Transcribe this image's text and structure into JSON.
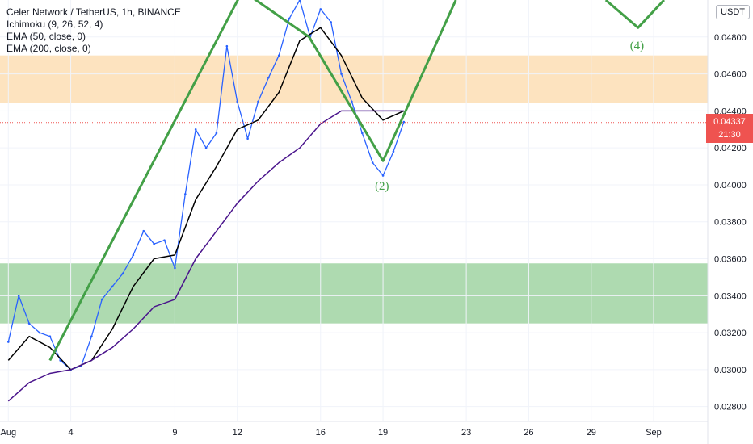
{
  "header": {
    "title": "Celer Network / TetherUS, 1h, BINANCE",
    "indicators": [
      "Ichimoku (9, 26, 52, 4)",
      "EMA (50, close, 0)",
      "EMA (200, close, 0)"
    ],
    "currency_button": "USDT"
  },
  "last_price": {
    "value": "0.04337",
    "countdown": "21:30",
    "color": "#ef5350"
  },
  "wave_labels": [
    {
      "text": "(2)",
      "x": 19.0,
      "y": 0.0399
    },
    {
      "text": "(4)",
      "x": 31.25,
      "y": 0.0475
    }
  ],
  "chart_data": {
    "type": "line",
    "x_axis": {
      "ticks": [
        "Aug",
        "4",
        "9",
        "12",
        "16",
        "19",
        "23",
        "26",
        "29",
        "Sep"
      ],
      "tick_values": [
        1,
        4,
        9,
        12,
        16,
        19,
        23,
        26,
        29,
        32
      ],
      "range": [
        0.6,
        34.6
      ]
    },
    "y_axis": {
      "ticks": [
        "0.02800",
        "0.03000",
        "0.03200",
        "0.03400",
        "0.03600",
        "0.03800",
        "0.04000",
        "0.04200",
        "0.04400",
        "0.04600",
        "0.04800"
      ],
      "range": [
        0.0272,
        0.05
      ],
      "side": "right"
    },
    "zones": [
      {
        "name": "resistance",
        "y_from": 0.04445,
        "y_to": 0.047,
        "color": "#fde0b8"
      },
      {
        "name": "support",
        "y_from": 0.0325,
        "y_to": 0.03575,
        "color": "#a5d6a7"
      }
    ],
    "series": [
      {
        "name": "Price",
        "color": "#2962ff",
        "x": [
          1.0,
          1.5,
          2.0,
          2.5,
          3.0,
          3.5,
          4.0,
          4.5,
          5.0,
          5.5,
          6.0,
          6.5,
          7.0,
          7.5,
          8.0,
          8.5,
          9.0,
          9.5,
          10.0,
          10.5,
          11.0,
          11.5,
          12.0,
          12.5,
          13.0,
          13.5,
          14.0,
          14.5,
          15.0,
          15.5,
          16.0,
          16.5,
          17.0,
          17.5,
          18.0,
          18.5,
          19.0,
          19.5,
          20.0
        ],
        "y": [
          0.0315,
          0.034,
          0.0325,
          0.032,
          0.0318,
          0.0305,
          0.03,
          0.0302,
          0.0318,
          0.0338,
          0.0345,
          0.0352,
          0.0362,
          0.0375,
          0.0368,
          0.037,
          0.0355,
          0.0395,
          0.043,
          0.042,
          0.0428,
          0.0475,
          0.0445,
          0.0425,
          0.0445,
          0.0458,
          0.047,
          0.049,
          0.05,
          0.048,
          0.0495,
          0.0488,
          0.046,
          0.0445,
          0.0428,
          0.0412,
          0.0405,
          0.0418,
          0.0434
        ]
      },
      {
        "name": "EMA 50",
        "color": "#000000",
        "x": [
          1,
          2,
          3,
          4,
          5,
          6,
          7,
          8,
          9,
          10,
          11,
          12,
          13,
          14,
          15,
          16,
          17,
          18,
          19,
          20
        ],
        "y": [
          0.0305,
          0.0318,
          0.0312,
          0.03,
          0.0305,
          0.0322,
          0.0345,
          0.036,
          0.0362,
          0.0392,
          0.041,
          0.043,
          0.0435,
          0.045,
          0.0478,
          0.0485,
          0.047,
          0.0447,
          0.0435,
          0.044
        ]
      },
      {
        "name": "EMA 200",
        "color": "#4a148c",
        "x": [
          1,
          2,
          3,
          4,
          5,
          6,
          7,
          8,
          9,
          10,
          11,
          12,
          13,
          14,
          15,
          16,
          17,
          18,
          19,
          20
        ],
        "y": [
          0.0283,
          0.0293,
          0.0298,
          0.03,
          0.0305,
          0.0312,
          0.0322,
          0.0334,
          0.0338,
          0.036,
          0.0375,
          0.039,
          0.0402,
          0.0412,
          0.042,
          0.0433,
          0.044,
          0.044,
          0.044,
          0.044
        ]
      }
    ],
    "wave_path": {
      "name": "Elliott projection",
      "color": "#43a047",
      "x": [
        3.0,
        12.25,
        15.45,
        19.0,
        22.5
      ],
      "y": [
        0.0305,
        0.0505,
        0.048,
        0.0413,
        0.05
      ]
    },
    "wave_path_2": {
      "x": [
        29.7,
        31.25,
        32.5
      ],
      "y": [
        0.05,
        0.0485,
        0.05
      ],
      "color": "#43a047"
    },
    "last_price_line": 0.04337
  }
}
